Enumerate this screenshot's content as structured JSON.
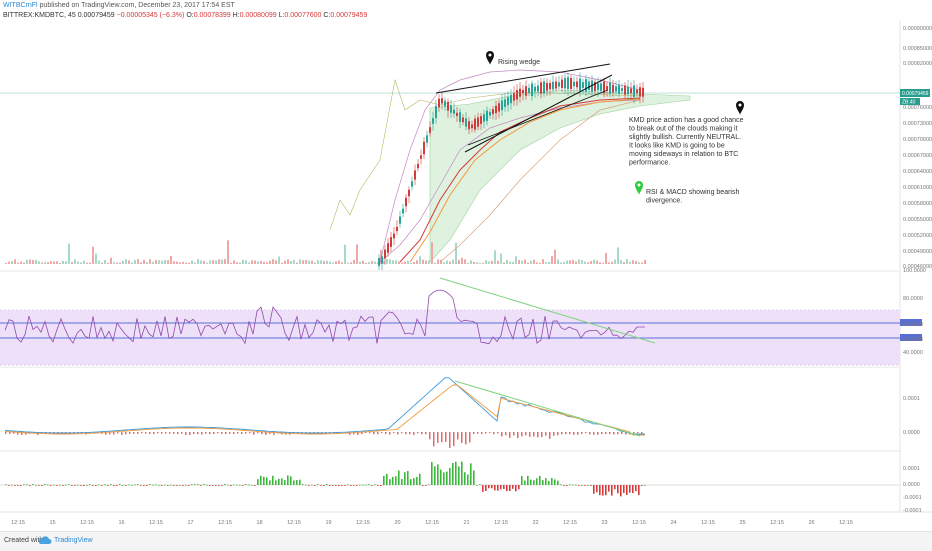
{
  "header": {
    "user": "WITBCrnFl",
    "published": "published on TradingView.com, December 23, 2017 17:54 EST"
  },
  "symbol": {
    "pair": "BITTREX:KMDBTC, 45",
    "last": "0.00079459",
    "change": "−0.00005345 (−6.3%)",
    "open_label": "O:",
    "open": "0.00078399",
    "high_label": "H:",
    "high": "0.00080099",
    "low_label": "L:",
    "low": "0.00077600",
    "close_label": "C:",
    "close": "0.00079459"
  },
  "price_axis": [
    "0.00090000",
    "0.00085000",
    "0.00082000",
    "0.00079459",
    "0.00076000",
    "0.00073000",
    "0.00070000",
    "0.00067000",
    "0.00064000",
    "0.00061000",
    "0.00058000",
    "0.00055000",
    "0.00052000",
    "0.00049000",
    "0.00046000",
    "0.00043000",
    "0.00040000",
    "0.00037000",
    "0.00034000"
  ],
  "price_tag_second": "ZB:40",
  "rsi_axis": [
    "100.0000",
    "80.0000",
    "60.0000",
    "50.0000",
    "40.0000"
  ],
  "macd_axis": [
    "0.0001",
    "0.0000"
  ],
  "osc_axis": [
    "0.0001",
    "0.0000",
    "-0.0001",
    "-0.0001"
  ],
  "x_axis": [
    "12:15",
    "15",
    "12:15",
    "16",
    "12:15",
    "17",
    "12:15",
    "18",
    "12:15",
    "19",
    "12:15",
    "20",
    "12:15",
    "21",
    "12:15",
    "22",
    "12:15",
    "23",
    "12:15",
    "24",
    "12:15",
    "25",
    "12:15",
    "26",
    "12:15"
  ],
  "annotations": {
    "wedge": "Rising wedge",
    "kmd_note": [
      "KMD price action has a good chance",
      "to break out of the clouds making it",
      "slightly bullish. Currently NEUTRAL.",
      "It looks like KMD is going to be",
      "moving sideways in relation to BTC",
      "performance."
    ],
    "rsi_note": [
      "RSI & MACD showing bearish",
      "divergence."
    ]
  },
  "colors": {
    "up": "#26a69a",
    "down": "#d43a3a",
    "rsi_band": "#efe0fa",
    "rsi_line": "#8e4ba8",
    "trend_green": "#7ed37e",
    "macd_blue": "#3a9ad9",
    "macd_orange": "#f39a3c",
    "osc_green": "#3ab83a",
    "osc_red": "#d43a3a",
    "price_line": "#2a9d8f"
  },
  "footer": {
    "created": "Created with",
    "brand": "TradingView"
  }
}
